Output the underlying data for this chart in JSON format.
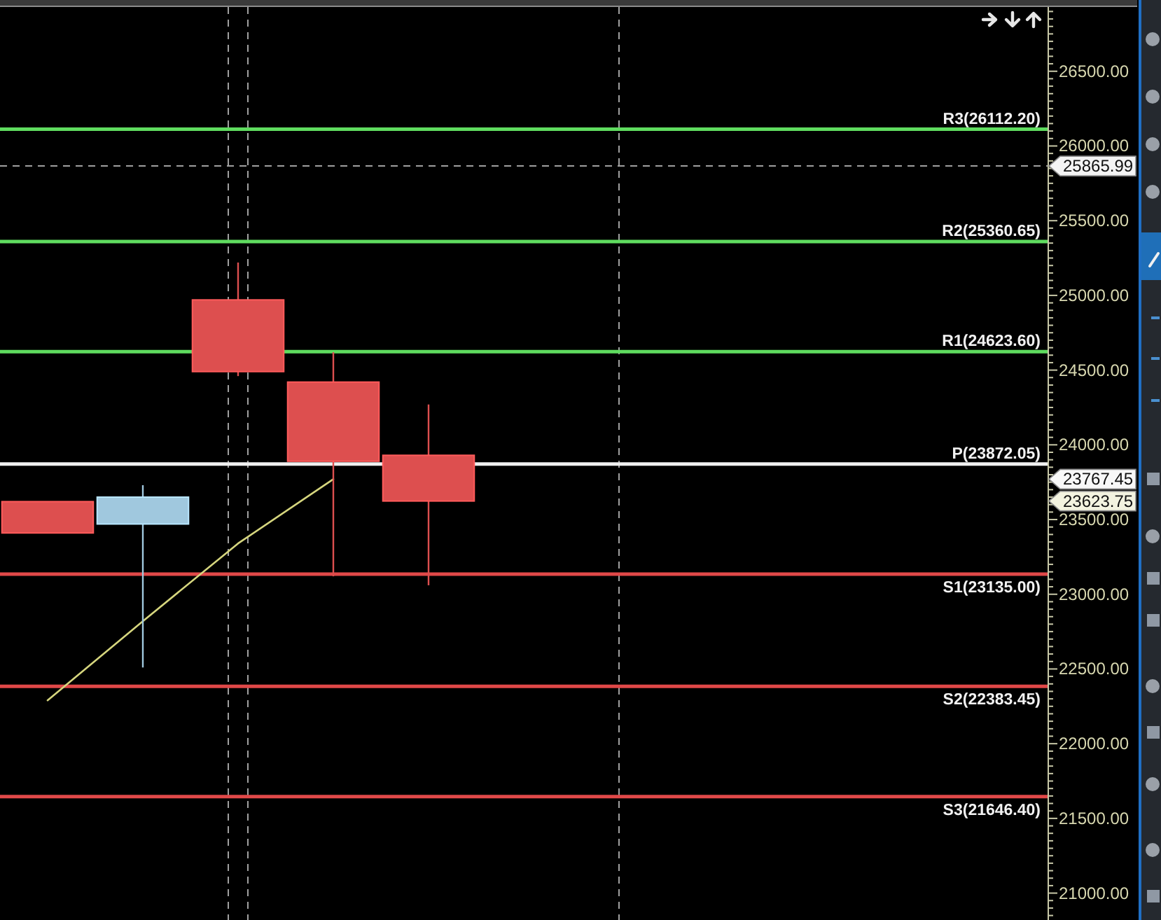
{
  "chart_data": {
    "type": "candlestick",
    "categories": [
      null,
      null,
      null,
      null,
      null,
      null,
      null,
      null,
      null,
      null,
      null
    ],
    "ohlc": [
      [
        23620,
        23620,
        23410,
        23410
      ],
      [
        23470,
        23730,
        22510,
        23650
      ],
      [
        24970,
        25220,
        24460,
        24490
      ],
      [
        24420,
        24620,
        23120,
        23890
      ],
      [
        23930,
        24270,
        23060,
        23623.75
      ],
      null,
      null,
      null,
      null,
      null,
      null
    ],
    "colors": [
      "#dd4f4f",
      "#a0c8de",
      "#dd4f4f",
      "#dd4f4f",
      "#dd4f4f",
      null,
      null,
      null,
      null,
      null,
      null
    ],
    "value_labels": [
      null,
      null,
      null,
      null,
      "23623.75",
      null,
      null,
      null,
      null,
      null,
      null
    ],
    "series": [
      {
        "type": "line",
        "color": "#d6d67e",
        "values": [
          22290,
          22820,
          23340,
          23770,
          null,
          null,
          null,
          null,
          null,
          null,
          null
        ]
      }
    ],
    "ylim": [
      20820,
      26930
    ],
    "yticks": [
      {
        "value": 20850,
        "label": null
      },
      {
        "value": 20900,
        "label": null
      },
      {
        "value": 20950,
        "label": null
      },
      {
        "value": 21000,
        "label": "21000.00"
      },
      {
        "value": 21050,
        "label": null
      },
      {
        "value": 21100,
        "label": null
      },
      {
        "value": 21150,
        "label": null
      },
      {
        "value": 21200,
        "label": null
      },
      {
        "value": 21250,
        "label": null
      },
      {
        "value": 21300,
        "label": null
      },
      {
        "value": 21350,
        "label": null
      },
      {
        "value": 21400,
        "label": null
      },
      {
        "value": 21450,
        "label": null
      },
      {
        "value": 21500,
        "label": "21500.00"
      },
      {
        "value": 21550,
        "label": null
      },
      {
        "value": 21600,
        "label": null
      },
      {
        "value": 21650,
        "label": null
      },
      {
        "value": 21700,
        "label": null
      },
      {
        "value": 21750,
        "label": null
      },
      {
        "value": 21800,
        "label": null
      },
      {
        "value": 21850,
        "label": null
      },
      {
        "value": 21900,
        "label": null
      },
      {
        "value": 21950,
        "label": null
      },
      {
        "value": 22000,
        "label": "22000.00"
      },
      {
        "value": 22050,
        "label": null
      },
      {
        "value": 22100,
        "label": null
      },
      {
        "value": 22150,
        "label": null
      },
      {
        "value": 22200,
        "label": null
      },
      {
        "value": 22250,
        "label": null
      },
      {
        "value": 22300,
        "label": null
      },
      {
        "value": 22350,
        "label": null
      },
      {
        "value": 22400,
        "label": null
      },
      {
        "value": 22450,
        "label": null
      },
      {
        "value": 22500,
        "label": "22500.00"
      },
      {
        "value": 22550,
        "label": null
      },
      {
        "value": 22600,
        "label": null
      },
      {
        "value": 22650,
        "label": null
      },
      {
        "value": 22700,
        "label": null
      },
      {
        "value": 22750,
        "label": null
      },
      {
        "value": 22800,
        "label": null
      },
      {
        "value": 22850,
        "label": null
      },
      {
        "value": 22900,
        "label": null
      },
      {
        "value": 22950,
        "label": null
      },
      {
        "value": 23000,
        "label": "23000.00"
      },
      {
        "value": 23050,
        "label": null
      },
      {
        "value": 23100,
        "label": null
      },
      {
        "value": 23150,
        "label": null
      },
      {
        "value": 23200,
        "label": null
      },
      {
        "value": 23250,
        "label": null
      },
      {
        "value": 23300,
        "label": null
      },
      {
        "value": 23350,
        "label": null
      },
      {
        "value": 23400,
        "label": null
      },
      {
        "value": 23450,
        "label": null
      },
      {
        "value": 23500,
        "label": "23500.00"
      },
      {
        "value": 23550,
        "label": null
      },
      {
        "value": 23600,
        "label": null
      },
      {
        "value": 23650,
        "label": null
      },
      {
        "value": 23700,
        "label": null
      },
      {
        "value": 23750,
        "label": null
      },
      {
        "value": 23800,
        "label": null
      },
      {
        "value": 23850,
        "label": null
      },
      {
        "value": 23900,
        "label": null
      },
      {
        "value": 23950,
        "label": null
      },
      {
        "value": 24000,
        "label": "24000.00"
      },
      {
        "value": 24050,
        "label": null
      },
      {
        "value": 24100,
        "label": null
      },
      {
        "value": 24150,
        "label": null
      },
      {
        "value": 24200,
        "label": null
      },
      {
        "value": 24250,
        "label": null
      },
      {
        "value": 24300,
        "label": null
      },
      {
        "value": 24350,
        "label": null
      },
      {
        "value": 24400,
        "label": null
      },
      {
        "value": 24450,
        "label": null
      },
      {
        "value": 24500,
        "label": "24500.00"
      },
      {
        "value": 24550,
        "label": null
      },
      {
        "value": 24600,
        "label": null
      },
      {
        "value": 24650,
        "label": null
      },
      {
        "value": 24700,
        "label": null
      },
      {
        "value": 24750,
        "label": null
      },
      {
        "value": 24800,
        "label": null
      },
      {
        "value": 24850,
        "label": null
      },
      {
        "value": 24900,
        "label": null
      },
      {
        "value": 24950,
        "label": null
      },
      {
        "value": 25000,
        "label": "25000.00"
      },
      {
        "value": 25050,
        "label": null
      },
      {
        "value": 25100,
        "label": null
      },
      {
        "value": 25150,
        "label": null
      },
      {
        "value": 25200,
        "label": null
      },
      {
        "value": 25250,
        "label": null
      },
      {
        "value": 25300,
        "label": null
      },
      {
        "value": 25350,
        "label": null
      },
      {
        "value": 25400,
        "label": null
      },
      {
        "value": 25450,
        "label": null
      },
      {
        "value": 25500,
        "label": "25500.00"
      },
      {
        "value": 25550,
        "label": null
      },
      {
        "value": 25600,
        "label": null
      },
      {
        "value": 25650,
        "label": null
      },
      {
        "value": 25700,
        "label": null
      },
      {
        "value": 25750,
        "label": null
      },
      {
        "value": 25800,
        "label": null
      },
      {
        "value": 25850,
        "label": null
      },
      {
        "value": 25900,
        "label": null
      },
      {
        "value": 25950,
        "label": null
      },
      {
        "value": 26000,
        "label": "26000.00"
      },
      {
        "value": 26050,
        "label": null
      },
      {
        "value": 26100,
        "label": null
      },
      {
        "value": 26150,
        "label": null
      },
      {
        "value": 26200,
        "label": null
      },
      {
        "value": 26250,
        "label": null
      },
      {
        "value": 26300,
        "label": null
      },
      {
        "value": 26350,
        "label": null
      },
      {
        "value": 26400,
        "label": null
      },
      {
        "value": 26450,
        "label": null
      },
      {
        "value": 26500,
        "label": "26500.00"
      },
      {
        "value": 26550,
        "label": null
      },
      {
        "value": 26600,
        "label": null
      },
      {
        "value": 26650,
        "label": null
      },
      {
        "value": 26700,
        "label": null
      },
      {
        "value": 26750,
        "label": null
      },
      {
        "value": 26800,
        "label": null
      },
      {
        "value": 26850,
        "label": null
      },
      {
        "value": 26900,
        "label": null
      }
    ],
    "tick_labels": "y",
    "ref_lines": [
      {
        "axis": "y",
        "value": 25865.99,
        "label": "25865.99",
        "color": "#a0a0a0",
        "line_style": "dashed"
      },
      {
        "axis": "y",
        "value": 26112.2,
        "label": "R3(26112.20)",
        "color": "#5fdc5f",
        "line_style": "solid"
      },
      {
        "axis": "y",
        "value": 25360.65,
        "label": "R2(25360.65)",
        "color": "#5fdc5f",
        "line_style": "solid"
      },
      {
        "axis": "y",
        "value": 24623.6,
        "label": "R1(24623.60)",
        "color": "#5fdc5f",
        "line_style": "solid"
      },
      {
        "axis": "y",
        "value": 23872.05,
        "label": "P(23872.05)",
        "color": "#f0f0f0",
        "line_style": "solid"
      },
      {
        "axis": "y",
        "value": 23135.0,
        "label": "S1(23135.00)",
        "color": "#e04848",
        "line_style": "solid"
      },
      {
        "axis": "y",
        "value": 22383.45,
        "label": "S2(22383.45)",
        "color": "#e04848",
        "line_style": "solid"
      },
      {
        "axis": "y",
        "value": 21646.4,
        "label": "S3(21646.40)",
        "color": "#e04848",
        "line_style": "solid"
      }
    ],
    "annotations": [
      "23767.45"
    ]
  }
}
